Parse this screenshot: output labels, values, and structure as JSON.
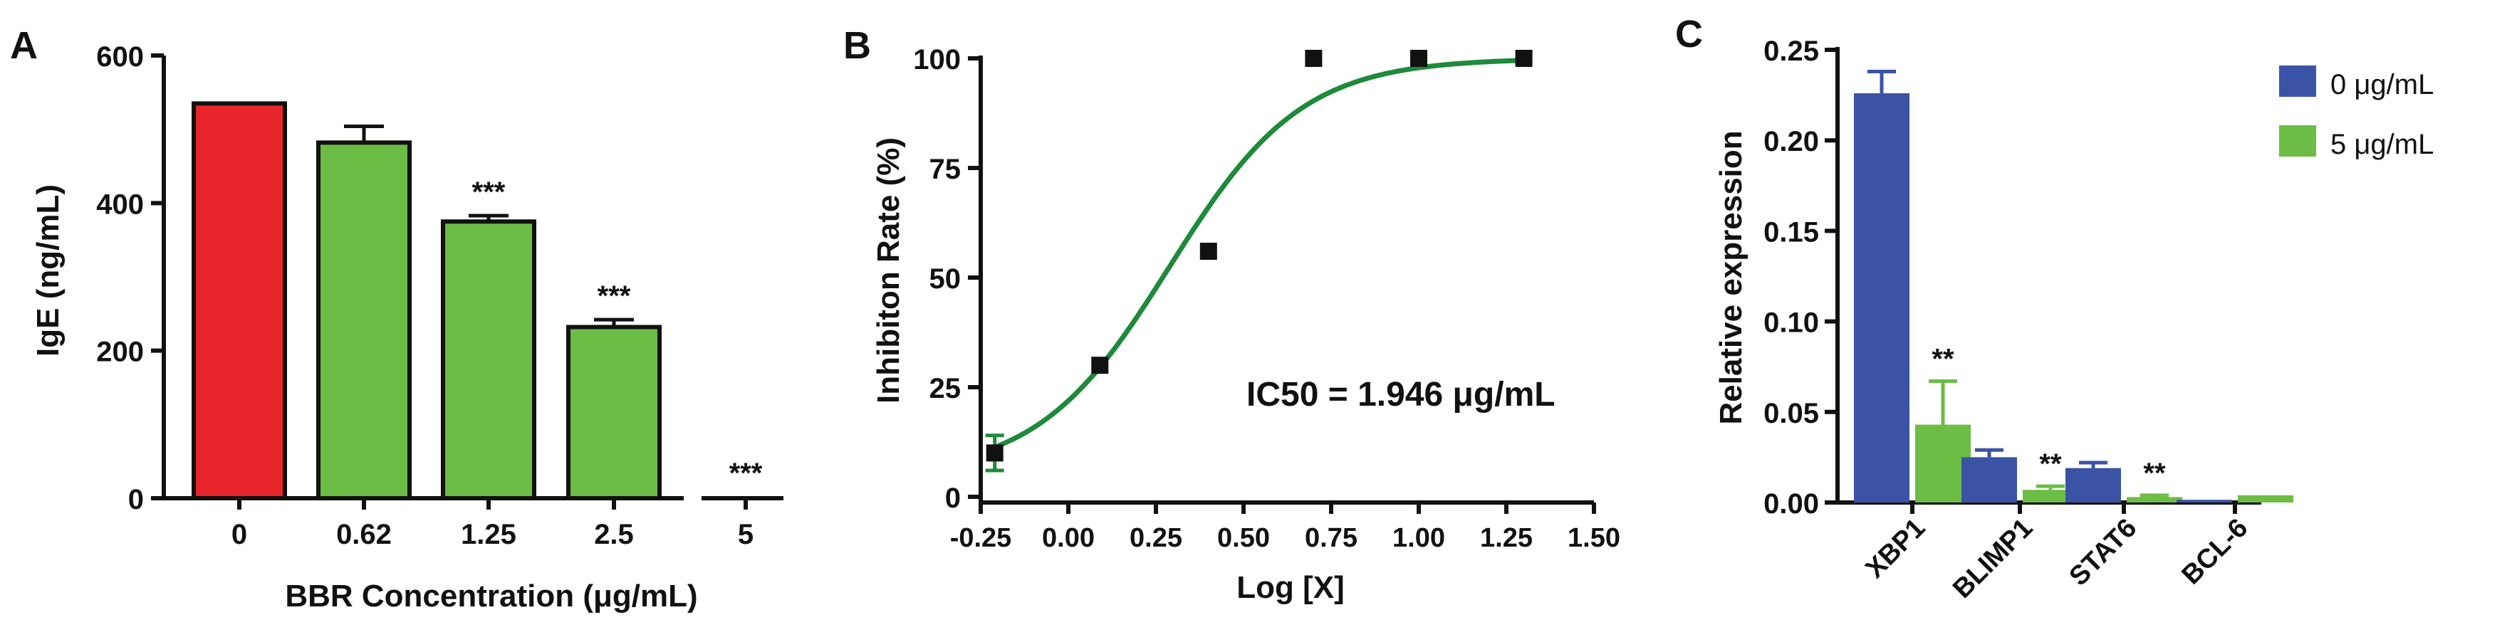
{
  "panels": {
    "A": {
      "letter": "A"
    },
    "B": {
      "letter": "B"
    },
    "C": {
      "letter": "C"
    }
  },
  "chart_data": [
    {
      "id": "A",
      "type": "bar",
      "xlabel": "BBR Concentration (μg/mL)",
      "ylabel": "IgE (ng/mL)",
      "ylim": [
        0,
        600
      ],
      "yticks": [
        "0",
        "200",
        "400",
        "600"
      ],
      "categories": [
        "0",
        "0.62",
        "1.25",
        "2.5",
        "5"
      ],
      "values": [
        535,
        482,
        375,
        232,
        0
      ],
      "errors": [
        0,
        22,
        8,
        10,
        0
      ],
      "colors": [
        "#e8252a",
        "#6cbd45",
        "#6cbd45",
        "#6cbd45",
        "#6cbd45"
      ],
      "significance": [
        "",
        "",
        "***",
        "***",
        "***"
      ]
    },
    {
      "id": "B",
      "type": "scatter",
      "xlabel": "Log [X]",
      "ylabel": "Inhibiton Rate (%)",
      "xlim": [
        -0.25,
        1.5
      ],
      "ylim": [
        0,
        100
      ],
      "xticks": [
        "-0.25",
        "0.00",
        "0.25",
        "0.50",
        "0.75",
        "1.00",
        "1.25",
        "1.50"
      ],
      "yticks": [
        "0",
        "25",
        "50",
        "75",
        "100"
      ],
      "points": [
        {
          "x": -0.21,
          "y": 10,
          "err": 4
        },
        {
          "x": 0.09,
          "y": 30,
          "err": 0
        },
        {
          "x": 0.4,
          "y": 56,
          "err": 0
        },
        {
          "x": 0.7,
          "y": 100,
          "err": 0
        },
        {
          "x": 1.0,
          "y": 100,
          "err": 0
        },
        {
          "x": 1.3,
          "y": 100,
          "err": 0
        }
      ],
      "fit": {
        "bottom": 5,
        "top": 100,
        "log_ic50": 0.289,
        "hill": 2.3,
        "color": "#1e8a3a"
      },
      "annotation": "IC50 = 1.946 μg/mL"
    },
    {
      "id": "C",
      "type": "bar",
      "ylabel": "Relative expression",
      "ylim": [
        0,
        0.25
      ],
      "yticks": [
        "0.00",
        "0.05",
        "0.10",
        "0.15",
        "0.20",
        "0.25"
      ],
      "categories": [
        "XBP1",
        "BLIMP1",
        "STAT6",
        "BCL-6"
      ],
      "series": [
        {
          "name": "0 μg/mL",
          "color": "#3a53a4",
          "values": [
            0.226,
            0.025,
            0.019,
            0.0015
          ],
          "errors": [
            0.012,
            0.004,
            0.003,
            0
          ]
        },
        {
          "name": "5 μg/mL",
          "color": "#6cbd45",
          "values": [
            0.043,
            0.007,
            0.003,
            0.004
          ],
          "errors": [
            0.024,
            0.002,
            0.001,
            0
          ]
        }
      ],
      "significance": [
        "**",
        "**",
        "**",
        ""
      ]
    }
  ]
}
